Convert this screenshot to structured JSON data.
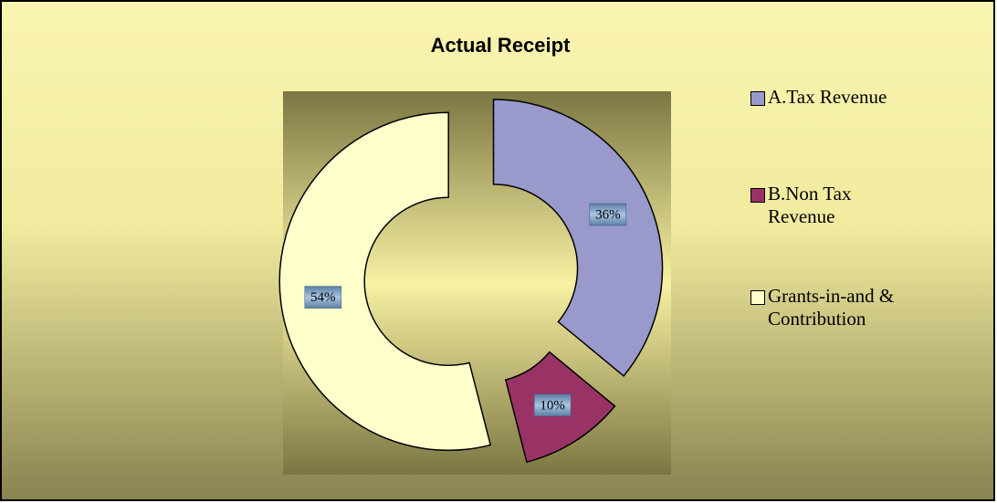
{
  "chart_data": {
    "type": "doughnut",
    "title": "Actual Receipt",
    "categories": [
      "A.Tax Revenue",
      "B.Non Tax Revenue",
      "Grants-in-and & Contribution"
    ],
    "values": [
      36,
      10,
      54
    ],
    "value_labels": [
      "36%",
      "10%",
      "54%"
    ],
    "colors": [
      "#9999cc",
      "#993366",
      "#ffffcc"
    ],
    "legend": "right"
  }
}
